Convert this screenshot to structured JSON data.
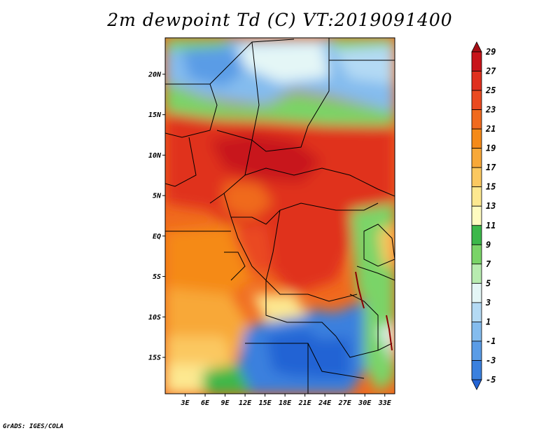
{
  "title": "2m dewpoint Td (C) VT:2019091400",
  "credit": "GrADS: IGES/COLA",
  "map": {
    "lat_labels": [
      "20N",
      "15N",
      "10N",
      "5N",
      "EQ",
      "5S",
      "10S",
      "15S"
    ],
    "lat_values": [
      20,
      15,
      10,
      5,
      0,
      -5,
      -10,
      -15
    ],
    "lon_labels": [
      "3E",
      "6E",
      "9E",
      "12E",
      "15E",
      "18E",
      "21E",
      "24E",
      "27E",
      "30E",
      "33E"
    ],
    "lon_values": [
      3,
      6,
      9,
      12,
      15,
      18,
      21,
      24,
      27,
      30,
      33
    ],
    "lon_range": [
      0,
      34.5
    ],
    "lat_range": [
      -19.5,
      24.5
    ]
  },
  "colorbar": {
    "labels": [
      "29",
      "27",
      "25",
      "23",
      "21",
      "19",
      "17",
      "15",
      "13",
      "11",
      "9",
      "7",
      "5",
      "3",
      "1",
      "-1",
      "-3",
      "-5"
    ],
    "colors": [
      "#a50f15",
      "#c8141a",
      "#e0301e",
      "#ea4a20",
      "#f06a1e",
      "#f58a18",
      "#f8a838",
      "#fbc860",
      "#fde890",
      "#fffbc0",
      "#3cb84a",
      "#7ad468",
      "#b8ecb0",
      "#e4f6f6",
      "#b4daf4",
      "#84bcee",
      "#5a9ce6",
      "#3a80de",
      "#2464d4"
    ]
  }
}
